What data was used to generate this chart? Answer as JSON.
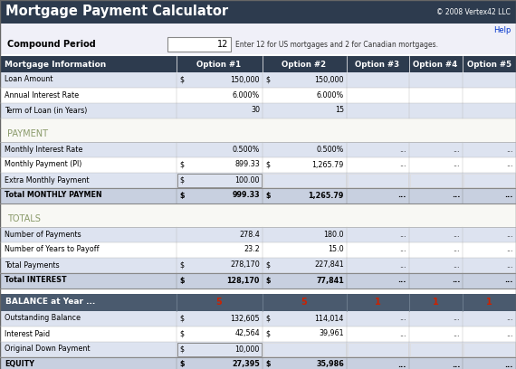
{
  "title": "Mortgage Payment Calculator",
  "copyright": "© 2008 Vertex42 LLC",
  "help_text": "Help",
  "compound_label": "Compound Period",
  "compound_value": "12",
  "compound_note": "Enter 12 for US mortgages and 2 for Canadian mortgages.",
  "header_bg": "#2d3b4e",
  "header_fg": "#ffffff",
  "section_fg": "#8a9a6a",
  "row_alt_bg": "#dde3f0",
  "row_bg": "#ffffff",
  "total_bg": "#c8d0e0",
  "balance_header_bg": "#4a5a6e",
  "col_headers": [
    "Mortgage Information",
    "Option #1",
    "Option #2",
    "Option #3",
    "Option #4",
    "Option #5"
  ],
  "mortgage_rows": [
    [
      "Loan Amount",
      "$",
      "150,000",
      "$",
      "150,000",
      "",
      "",
      "",
      "",
      ""
    ],
    [
      "Annual Interest Rate",
      "",
      "6.000%",
      "",
      "6.000%",
      "",
      "",
      "",
      "",
      ""
    ],
    [
      "Term of Loan (in Years)",
      "",
      "30",
      "",
      "15",
      "",
      "",
      "",
      "",
      ""
    ]
  ],
  "payment_section": "PAYMENT",
  "payment_rows": [
    [
      "Monthly Interest Rate",
      "",
      "0.500%",
      "",
      "0.500%",
      "",
      "...",
      "",
      "...",
      "",
      "..."
    ],
    [
      "Monthly Payment (PI)",
      "$",
      "899.33",
      "$",
      "1,265.79",
      "",
      "...",
      "",
      "...",
      "",
      "..."
    ],
    [
      "Extra Monthly Payment",
      "$",
      "100.00",
      "",
      "",
      "",
      "",
      "",
      "",
      "",
      ""
    ]
  ],
  "payment_total": [
    "Total MONTHLY PAYMEN",
    "$",
    "999.33",
    "$",
    "1,265.79",
    "",
    "...",
    "",
    "...",
    "",
    "..."
  ],
  "totals_section": "TOTALS",
  "totals_rows": [
    [
      "Number of Payments",
      "",
      "278.4",
      "",
      "180.0",
      "",
      "...",
      "",
      "...",
      "",
      "..."
    ],
    [
      "Number of Years to Payoff",
      "",
      "23.2",
      "",
      "15.0",
      "",
      "...",
      "",
      "...",
      "",
      "..."
    ],
    [
      "Total Payments",
      "$",
      "278,170",
      "$",
      "227,841",
      "",
      "...",
      "",
      "...",
      "",
      "..."
    ],
    [
      "Total INTEREST",
      "$",
      "128,170",
      "$",
      "77,841",
      "",
      "...",
      "",
      "...",
      "",
      "..."
    ]
  ],
  "balance_section": "BALANCE at Year ...",
  "balance_years": [
    "",
    "5",
    "5",
    "1",
    "1",
    "1"
  ],
  "balance_rows": [
    [
      "Outstanding Balance",
      "$",
      "132,605",
      "$",
      "114,014",
      "",
      "...",
      "",
      "...",
      "",
      "..."
    ],
    [
      "Interest Paid",
      "$",
      "42,564",
      "$",
      "39,961",
      "",
      "...",
      "",
      "...",
      "",
      "..."
    ],
    [
      "Original Down Payment",
      "$",
      "10,000",
      "",
      "",
      "",
      "",
      "",
      "",
      "",
      ""
    ]
  ],
  "equity_row": [
    "EQUITY",
    "$",
    "27,395",
    "$",
    "35,986",
    "",
    "...",
    "",
    "...",
    "",
    "..."
  ],
  "orange": "#cc2200"
}
